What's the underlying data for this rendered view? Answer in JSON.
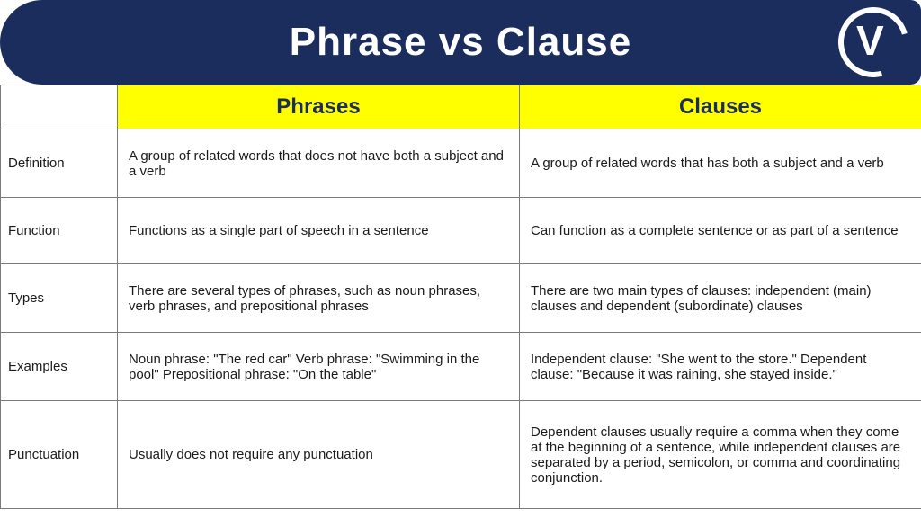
{
  "banner": {
    "title": "Phrase vs Clause"
  },
  "headers": {
    "blank": "",
    "phrases": "Phrases",
    "clauses": "Clauses"
  },
  "rows": [
    {
      "label": "Definition",
      "phrases": "A group of related words that does not have both a subject and a verb",
      "clauses": "A group of related words that has both a subject and a verb"
    },
    {
      "label": "Function",
      "phrases": "Functions as a single part of speech in a sentence",
      "clauses": "Can function as a complete sentence or as part of a sentence"
    },
    {
      "label": "Types",
      "phrases": "There are several types of phrases, such as noun phrases, verb phrases, and prepositional phrases",
      "clauses": "There are two main types of clauses: independent (main) clauses and dependent (subordinate) clauses"
    },
    {
      "label": "Examples",
      "phrases": "Noun phrase: \"The red car\" Verb phrase: \"Swimming in the pool\" Prepositional phrase: \"On the table\"",
      "clauses": "Independent clause: \"She went to the store.\" Dependent clause: \"Because it was raining, she stayed inside.\""
    },
    {
      "label": "Punctuation",
      "phrases": "Usually does not require any punctuation",
      "clauses": "Dependent clauses usually require a comma when they come at the beginning of a sentence, while independent clauses are separated by a period, semicolon, or comma and coordinating conjunction."
    }
  ],
  "colors": {
    "banner_bg": "#1b2d5c",
    "banner_text": "#ffffff",
    "header_bg": "#ffff00",
    "header_text": "#1b2d5c",
    "border": "#7a7a7a",
    "body_text": "#1a1a1a"
  }
}
